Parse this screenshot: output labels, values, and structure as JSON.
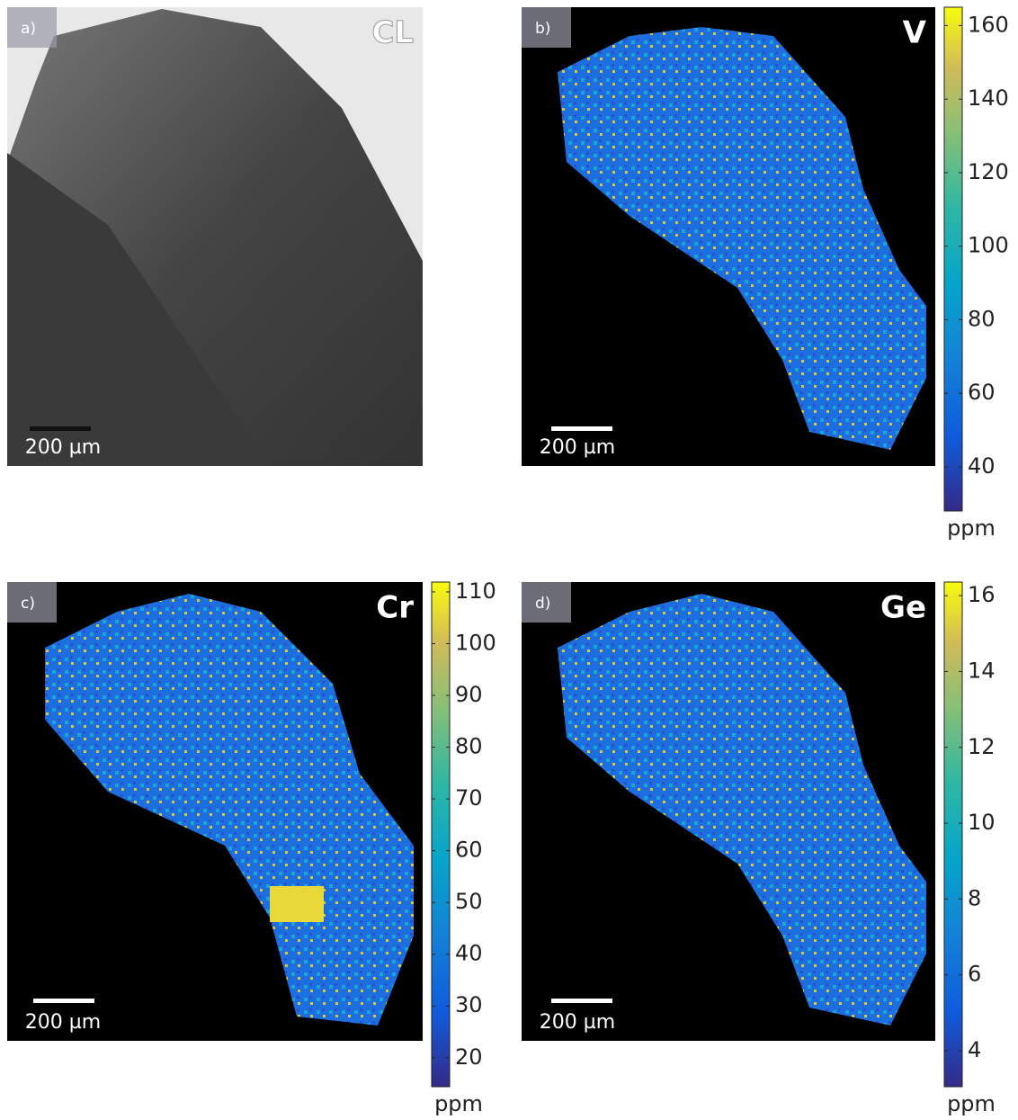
{
  "panels": [
    {
      "label": "a)",
      "element": "CL",
      "scalebar": "200 µm"
    },
    {
      "label": "b)",
      "element": "V",
      "scalebar": "200 µm",
      "colorbar": {
        "range": [
          28,
          165
        ],
        "ticks": [
          40,
          60,
          80,
          100,
          120,
          140,
          160
        ],
        "unit": "ppm"
      }
    },
    {
      "label": "c)",
      "element": "Cr",
      "scalebar": "200 µm",
      "colorbar": {
        "range": [
          14.4,
          111.9
        ],
        "ticks": [
          20,
          30,
          40,
          50,
          60,
          70,
          80,
          90,
          100,
          110
        ],
        "unit": "ppm"
      }
    },
    {
      "label": "d)",
      "element": "Ge",
      "scalebar": "200 µm",
      "colorbar": {
        "range": [
          3.05,
          16.36
        ],
        "ticks": [
          4,
          6,
          8,
          10,
          12,
          14,
          16
        ],
        "unit": "ppm"
      }
    }
  ]
}
